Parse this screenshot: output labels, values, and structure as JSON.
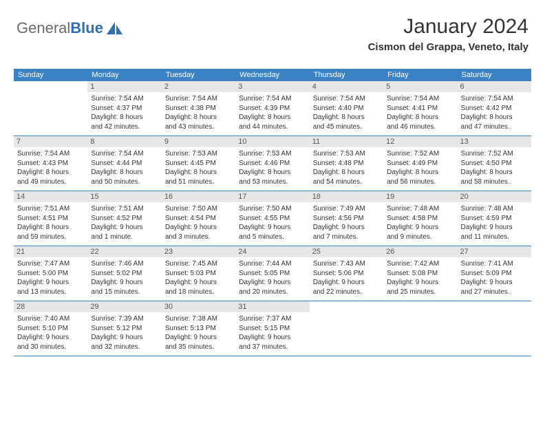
{
  "logo": {
    "part1": "General",
    "part2": "Blue"
  },
  "header": {
    "month_title": "January 2024",
    "location": "Cismon del Grappa, Veneto, Italy"
  },
  "colors": {
    "header_bg": "#3b82c4",
    "daynum_bg": "#e7e7e7",
    "rule": "#3b82c4",
    "text": "#333333",
    "logo_gray": "#6a6a6a",
    "logo_blue": "#2f6fb0"
  },
  "day_names": [
    "Sunday",
    "Monday",
    "Tuesday",
    "Wednesday",
    "Thursday",
    "Friday",
    "Saturday"
  ],
  "weeks": [
    [
      {
        "empty": true
      },
      {
        "day": "1",
        "sunrise": "Sunrise: 7:54 AM",
        "sunset": "Sunset: 4:37 PM",
        "daylight1": "Daylight: 8 hours",
        "daylight2": "and 42 minutes."
      },
      {
        "day": "2",
        "sunrise": "Sunrise: 7:54 AM",
        "sunset": "Sunset: 4:38 PM",
        "daylight1": "Daylight: 8 hours",
        "daylight2": "and 43 minutes."
      },
      {
        "day": "3",
        "sunrise": "Sunrise: 7:54 AM",
        "sunset": "Sunset: 4:39 PM",
        "daylight1": "Daylight: 8 hours",
        "daylight2": "and 44 minutes."
      },
      {
        "day": "4",
        "sunrise": "Sunrise: 7:54 AM",
        "sunset": "Sunset: 4:40 PM",
        "daylight1": "Daylight: 8 hours",
        "daylight2": "and 45 minutes."
      },
      {
        "day": "5",
        "sunrise": "Sunrise: 7:54 AM",
        "sunset": "Sunset: 4:41 PM",
        "daylight1": "Daylight: 8 hours",
        "daylight2": "and 46 minutes."
      },
      {
        "day": "6",
        "sunrise": "Sunrise: 7:54 AM",
        "sunset": "Sunset: 4:42 PM",
        "daylight1": "Daylight: 8 hours",
        "daylight2": "and 47 minutes."
      }
    ],
    [
      {
        "day": "7",
        "sunrise": "Sunrise: 7:54 AM",
        "sunset": "Sunset: 4:43 PM",
        "daylight1": "Daylight: 8 hours",
        "daylight2": "and 49 minutes."
      },
      {
        "day": "8",
        "sunrise": "Sunrise: 7:54 AM",
        "sunset": "Sunset: 4:44 PM",
        "daylight1": "Daylight: 8 hours",
        "daylight2": "and 50 minutes."
      },
      {
        "day": "9",
        "sunrise": "Sunrise: 7:53 AM",
        "sunset": "Sunset: 4:45 PM",
        "daylight1": "Daylight: 8 hours",
        "daylight2": "and 51 minutes."
      },
      {
        "day": "10",
        "sunrise": "Sunrise: 7:53 AM",
        "sunset": "Sunset: 4:46 PM",
        "daylight1": "Daylight: 8 hours",
        "daylight2": "and 53 minutes."
      },
      {
        "day": "11",
        "sunrise": "Sunrise: 7:53 AM",
        "sunset": "Sunset: 4:48 PM",
        "daylight1": "Daylight: 8 hours",
        "daylight2": "and 54 minutes."
      },
      {
        "day": "12",
        "sunrise": "Sunrise: 7:52 AM",
        "sunset": "Sunset: 4:49 PM",
        "daylight1": "Daylight: 8 hours",
        "daylight2": "and 56 minutes."
      },
      {
        "day": "13",
        "sunrise": "Sunrise: 7:52 AM",
        "sunset": "Sunset: 4:50 PM",
        "daylight1": "Daylight: 8 hours",
        "daylight2": "and 58 minutes."
      }
    ],
    [
      {
        "day": "14",
        "sunrise": "Sunrise: 7:51 AM",
        "sunset": "Sunset: 4:51 PM",
        "daylight1": "Daylight: 8 hours",
        "daylight2": "and 59 minutes."
      },
      {
        "day": "15",
        "sunrise": "Sunrise: 7:51 AM",
        "sunset": "Sunset: 4:52 PM",
        "daylight1": "Daylight: 9 hours",
        "daylight2": "and 1 minute."
      },
      {
        "day": "16",
        "sunrise": "Sunrise: 7:50 AM",
        "sunset": "Sunset: 4:54 PM",
        "daylight1": "Daylight: 9 hours",
        "daylight2": "and 3 minutes."
      },
      {
        "day": "17",
        "sunrise": "Sunrise: 7:50 AM",
        "sunset": "Sunset: 4:55 PM",
        "daylight1": "Daylight: 9 hours",
        "daylight2": "and 5 minutes."
      },
      {
        "day": "18",
        "sunrise": "Sunrise: 7:49 AM",
        "sunset": "Sunset: 4:56 PM",
        "daylight1": "Daylight: 9 hours",
        "daylight2": "and 7 minutes."
      },
      {
        "day": "19",
        "sunrise": "Sunrise: 7:48 AM",
        "sunset": "Sunset: 4:58 PM",
        "daylight1": "Daylight: 9 hours",
        "daylight2": "and 9 minutes."
      },
      {
        "day": "20",
        "sunrise": "Sunrise: 7:48 AM",
        "sunset": "Sunset: 4:59 PM",
        "daylight1": "Daylight: 9 hours",
        "daylight2": "and 11 minutes."
      }
    ],
    [
      {
        "day": "21",
        "sunrise": "Sunrise: 7:47 AM",
        "sunset": "Sunset: 5:00 PM",
        "daylight1": "Daylight: 9 hours",
        "daylight2": "and 13 minutes."
      },
      {
        "day": "22",
        "sunrise": "Sunrise: 7:46 AM",
        "sunset": "Sunset: 5:02 PM",
        "daylight1": "Daylight: 9 hours",
        "daylight2": "and 15 minutes."
      },
      {
        "day": "23",
        "sunrise": "Sunrise: 7:45 AM",
        "sunset": "Sunset: 5:03 PM",
        "daylight1": "Daylight: 9 hours",
        "daylight2": "and 18 minutes."
      },
      {
        "day": "24",
        "sunrise": "Sunrise: 7:44 AM",
        "sunset": "Sunset: 5:05 PM",
        "daylight1": "Daylight: 9 hours",
        "daylight2": "and 20 minutes."
      },
      {
        "day": "25",
        "sunrise": "Sunrise: 7:43 AM",
        "sunset": "Sunset: 5:06 PM",
        "daylight1": "Daylight: 9 hours",
        "daylight2": "and 22 minutes."
      },
      {
        "day": "26",
        "sunrise": "Sunrise: 7:42 AM",
        "sunset": "Sunset: 5:08 PM",
        "daylight1": "Daylight: 9 hours",
        "daylight2": "and 25 minutes."
      },
      {
        "day": "27",
        "sunrise": "Sunrise: 7:41 AM",
        "sunset": "Sunset: 5:09 PM",
        "daylight1": "Daylight: 9 hours",
        "daylight2": "and 27 minutes."
      }
    ],
    [
      {
        "day": "28",
        "sunrise": "Sunrise: 7:40 AM",
        "sunset": "Sunset: 5:10 PM",
        "daylight1": "Daylight: 9 hours",
        "daylight2": "and 30 minutes."
      },
      {
        "day": "29",
        "sunrise": "Sunrise: 7:39 AM",
        "sunset": "Sunset: 5:12 PM",
        "daylight1": "Daylight: 9 hours",
        "daylight2": "and 32 minutes."
      },
      {
        "day": "30",
        "sunrise": "Sunrise: 7:38 AM",
        "sunset": "Sunset: 5:13 PM",
        "daylight1": "Daylight: 9 hours",
        "daylight2": "and 35 minutes."
      },
      {
        "day": "31",
        "sunrise": "Sunrise: 7:37 AM",
        "sunset": "Sunset: 5:15 PM",
        "daylight1": "Daylight: 9 hours",
        "daylight2": "and 37 minutes."
      },
      {
        "empty": true
      },
      {
        "empty": true
      },
      {
        "empty": true
      }
    ]
  ]
}
